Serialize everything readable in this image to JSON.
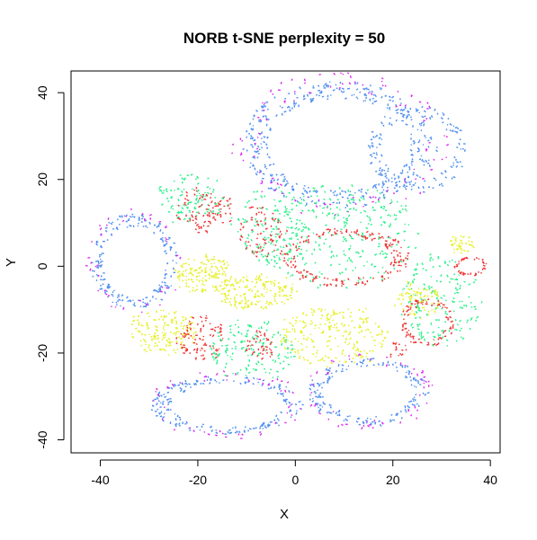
{
  "chart_data": {
    "type": "scatter",
    "title": "NORB t-SNE perplexity = 50",
    "xlabel": "X",
    "ylabel": "Y",
    "xlim": [
      -46,
      42
    ],
    "ylim": [
      -43,
      45
    ],
    "xticks": [
      -40,
      -20,
      0,
      20,
      40
    ],
    "yticks": [
      -40,
      -20,
      0,
      20,
      40
    ],
    "xtick_labels": [
      "-40",
      "-20",
      "0",
      "20",
      "40"
    ],
    "ytick_labels": [
      "-40",
      "-20",
      "0",
      "20",
      "40"
    ],
    "legend": "none",
    "grid": false,
    "series_colors": {
      "blue": "#4f8ff0",
      "magenta": "#dd2af0",
      "green": "#2cf08a",
      "red": "#f03434",
      "yellow": "#e6f02a"
    },
    "clusters": [
      {
        "color": "blue",
        "shape": "ring",
        "cx": 9,
        "cy": 28,
        "rx": 18,
        "ry": 13,
        "n": 380
      },
      {
        "color": "magenta",
        "shape": "ring",
        "cx": 9,
        "cy": 28,
        "rx": 20,
        "ry": 15,
        "n": 110
      },
      {
        "color": "blue",
        "shape": "ring",
        "cx": 25,
        "cy": 27,
        "rx": 9,
        "ry": 9,
        "n": 140
      },
      {
        "color": "blue",
        "shape": "ring",
        "cx": -33,
        "cy": 1,
        "rx": 8,
        "ry": 10,
        "n": 190
      },
      {
        "color": "magenta",
        "shape": "ring",
        "cx": -33,
        "cy": 1,
        "rx": 9,
        "ry": 11,
        "n": 45
      },
      {
        "color": "blue",
        "shape": "ring",
        "cx": -14,
        "cy": -32,
        "rx": 14,
        "ry": 6,
        "n": 190
      },
      {
        "color": "magenta",
        "shape": "ring",
        "cx": -14,
        "cy": -32,
        "rx": 15,
        "ry": 7,
        "n": 55
      },
      {
        "color": "blue",
        "shape": "ring",
        "cx": 15,
        "cy": -29,
        "rx": 11,
        "ry": 7,
        "n": 170
      },
      {
        "color": "magenta",
        "shape": "ring",
        "cx": 15,
        "cy": -29,
        "rx": 12,
        "ry": 8,
        "n": 55
      },
      {
        "color": "green",
        "shape": "blob",
        "cx": -21,
        "cy": 16,
        "rx": 7,
        "ry": 6,
        "n": 110
      },
      {
        "color": "red",
        "shape": "blob",
        "cx": -19,
        "cy": 13,
        "rx": 6,
        "ry": 5,
        "n": 90
      },
      {
        "color": "green",
        "shape": "blob",
        "cx": -5,
        "cy": 9,
        "rx": 8,
        "ry": 9,
        "n": 130
      },
      {
        "color": "red",
        "shape": "blob",
        "cx": -7,
        "cy": 8,
        "rx": 5,
        "ry": 6,
        "n": 70
      },
      {
        "color": "green",
        "shape": "blob",
        "cx": 9,
        "cy": 7,
        "rx": 16,
        "ry": 12,
        "n": 280
      },
      {
        "color": "red",
        "shape": "ring",
        "cx": 10,
        "cy": 2,
        "rx": 12,
        "ry": 6,
        "n": 170
      },
      {
        "color": "yellow",
        "shape": "blob",
        "cx": -19,
        "cy": -2,
        "rx": 6,
        "ry": 4,
        "n": 150
      },
      {
        "color": "yellow",
        "shape": "blob",
        "cx": -8,
        "cy": -6,
        "rx": 8,
        "ry": 4,
        "n": 170
      },
      {
        "color": "yellow",
        "shape": "blob",
        "cx": -27,
        "cy": -15,
        "rx": 7,
        "ry": 5,
        "n": 160
      },
      {
        "color": "red",
        "shape": "blob",
        "cx": -19,
        "cy": -17,
        "rx": 5,
        "ry": 5,
        "n": 90
      },
      {
        "color": "green",
        "shape": "blob",
        "cx": -9,
        "cy": -19,
        "rx": 9,
        "ry": 7,
        "n": 150
      },
      {
        "color": "red",
        "shape": "blob",
        "cx": -7,
        "cy": -18,
        "rx": 3,
        "ry": 3,
        "n": 40
      },
      {
        "color": "yellow",
        "shape": "blob",
        "cx": 8,
        "cy": -16,
        "rx": 11,
        "ry": 7,
        "n": 230
      },
      {
        "color": "green",
        "shape": "blob",
        "cx": 30,
        "cy": -8,
        "rx": 8,
        "ry": 11,
        "n": 170
      },
      {
        "color": "red",
        "shape": "ring",
        "cx": 27,
        "cy": -13,
        "rx": 5,
        "ry": 5,
        "n": 90
      },
      {
        "color": "red",
        "shape": "ring",
        "cx": 36,
        "cy": 0,
        "rx": 3,
        "ry": 2,
        "n": 40
      },
      {
        "color": "yellow",
        "shape": "blob",
        "cx": 25,
        "cy": -8,
        "rx": 5,
        "ry": 4,
        "n": 70
      },
      {
        "color": "yellow",
        "shape": "blob",
        "cx": 34,
        "cy": 5,
        "rx": 3,
        "ry": 2,
        "n": 40
      },
      {
        "color": "red",
        "shape": "blob",
        "cx": 21,
        "cy": -19,
        "rx": 2,
        "ry": 2,
        "n": 15
      }
    ]
  }
}
